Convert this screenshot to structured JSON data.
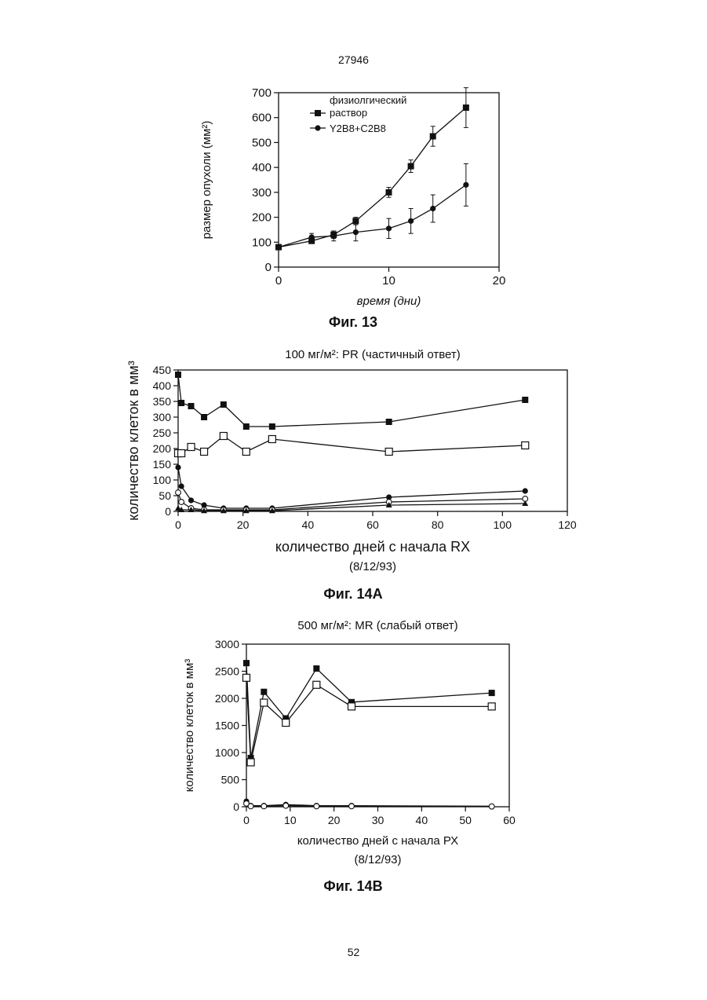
{
  "page": {
    "header": "27946",
    "footer": "52"
  },
  "captions": {
    "fig13": "Фиг. 13",
    "fig14a": "Фиг. 14А",
    "fig14b": "Фиг. 14В"
  },
  "chart_data": [
    {
      "id": "fig13",
      "type": "line",
      "title": "",
      "xlabel": "время (дни)",
      "ylabel": "размер опухоли (мм²)",
      "xlim": [
        0,
        20
      ],
      "ylim": [
        0,
        700
      ],
      "xticks": [
        0,
        10,
        20
      ],
      "yticks": [
        0,
        100,
        200,
        300,
        400,
        500,
        600,
        700
      ],
      "legend": {
        "placement": "top-left",
        "lines": [
          "физиолгический",
          "раствор",
          "Y2B8+C2B8"
        ]
      },
      "series": [
        {
          "name": "физиолгический раствор",
          "marker": "square-filled",
          "x": [
            0,
            3,
            5,
            7,
            10,
            12,
            14,
            17
          ],
          "y": [
            80,
            105,
            130,
            185,
            300,
            405,
            525,
            640
          ],
          "err": [
            5,
            10,
            15,
            15,
            20,
            25,
            40,
            80
          ]
        },
        {
          "name": "Y2B8+C2B8",
          "marker": "dot",
          "x": [
            0,
            3,
            5,
            7,
            10,
            12,
            14,
            17
          ],
          "y": [
            80,
            120,
            125,
            140,
            155,
            185,
            235,
            330
          ],
          "err": [
            5,
            15,
            20,
            35,
            40,
            50,
            55,
            85
          ]
        }
      ]
    },
    {
      "id": "fig14a",
      "type": "line",
      "title": "100 мг/м²: PR (частичный ответ)",
      "xlabel": "количество дней с начала RX",
      "xlabel2": "(8/12/93)",
      "ylabel": "количество клеток в мм³",
      "xlim": [
        0,
        120
      ],
      "ylim": [
        0,
        450
      ],
      "xticks": [
        0,
        20,
        40,
        60,
        80,
        100,
        120
      ],
      "yticks": [
        0,
        50,
        100,
        150,
        200,
        250,
        300,
        350,
        400,
        450
      ],
      "series": [
        {
          "marker": "square-filled",
          "x": [
            0,
            1,
            4,
            8,
            14,
            21,
            29,
            65,
            107
          ],
          "y": [
            435,
            345,
            335,
            300,
            340,
            270,
            270,
            285,
            355
          ]
        },
        {
          "marker": "square-open",
          "x": [
            0,
            1,
            4,
            8,
            14,
            21,
            29,
            65,
            107
          ],
          "y": [
            185,
            185,
            205,
            190,
            240,
            190,
            230,
            190,
            210
          ]
        },
        {
          "marker": "dot",
          "x": [
            0,
            1,
            4,
            8,
            14,
            21,
            29,
            65,
            107
          ],
          "y": [
            140,
            80,
            35,
            20,
            10,
            10,
            10,
            45,
            65
          ]
        },
        {
          "marker": "circle-open",
          "x": [
            0,
            1,
            4,
            8,
            14,
            21,
            29,
            65,
            107
          ],
          "y": [
            60,
            30,
            10,
            5,
            5,
            5,
            5,
            30,
            40
          ]
        },
        {
          "marker": "triangle",
          "x": [
            0,
            1,
            4,
            8,
            14,
            21,
            29,
            65,
            107
          ],
          "y": [
            10,
            5,
            5,
            2,
            2,
            2,
            2,
            20,
            25
          ]
        }
      ]
    },
    {
      "id": "fig14b",
      "type": "line",
      "title": "500 мг/м²: MR (слабый ответ)",
      "xlabel": "количество дней с начала РХ",
      "xlabel2": "(8/12/93)",
      "ylabel": "количество клеток в мм³",
      "xlim": [
        0,
        60
      ],
      "ylim": [
        0,
        3000
      ],
      "xticks": [
        0,
        10,
        20,
        30,
        40,
        50,
        60
      ],
      "yticks": [
        0,
        500,
        1000,
        1500,
        2000,
        2500,
        3000
      ],
      "series": [
        {
          "marker": "square-filled",
          "x": [
            0,
            1,
            4,
            9,
            16,
            24,
            56
          ],
          "y": [
            2650,
            900,
            2120,
            1630,
            2550,
            1930,
            2100
          ]
        },
        {
          "marker": "square-open",
          "x": [
            0,
            1,
            4,
            9,
            16,
            24,
            56
          ],
          "y": [
            2380,
            820,
            1920,
            1550,
            2250,
            1850,
            1850
          ]
        },
        {
          "marker": "dot",
          "x": [
            0,
            1,
            4,
            9,
            16,
            24,
            56
          ],
          "y": [
            100,
            20,
            20,
            40,
            20,
            20,
            10
          ]
        },
        {
          "marker": "circle-open",
          "x": [
            0,
            1,
            4,
            9,
            16,
            24,
            56
          ],
          "y": [
            60,
            10,
            10,
            20,
            10,
            10,
            5
          ]
        }
      ]
    }
  ]
}
